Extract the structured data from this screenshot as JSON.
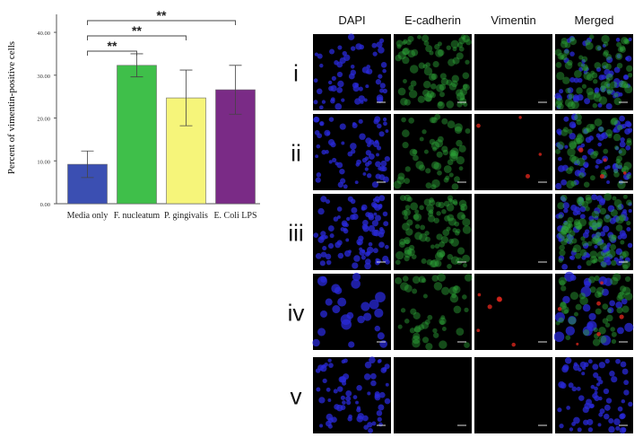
{
  "chart_data": {
    "type": "bar",
    "ylabel": "Percent of vimentin-positive cells",
    "categories": [
      "Media only",
      "F. nucleatum",
      "P. gingivalis",
      "E. Coli LPS"
    ],
    "values": [
      9.2,
      32.3,
      24.7,
      26.6
    ],
    "errors": [
      3.1,
      2.7,
      6.5,
      5.7
    ],
    "colors": [
      "#3b4fb2",
      "#3fbf4a",
      "#f6f57a",
      "#7a2b86"
    ],
    "ylim": [
      0,
      44.2
    ],
    "yticks": [
      {
        "value": 0,
        "label": "0.00"
      },
      {
        "value": 10,
        "label": "10.00"
      },
      {
        "value": 20,
        "label": "20.00"
      },
      {
        "value": 30,
        "label": "30.00"
      },
      {
        "value": 40,
        "label": "40.00"
      }
    ],
    "annotations": [
      {
        "label": "**",
        "from": "Media only",
        "to": "F. nucleatum"
      },
      {
        "label": "**",
        "from": "Media only",
        "to": "P. gingivalis"
      },
      {
        "label": "**",
        "from": "Media only",
        "to": "E. Coli LPS"
      }
    ]
  },
  "figure": {
    "columns": [
      "DAPI",
      "E-cadherin",
      "Vimentin",
      "Merged"
    ],
    "rows": [
      "i",
      "ii",
      "iii",
      "iv",
      "v"
    ]
  }
}
